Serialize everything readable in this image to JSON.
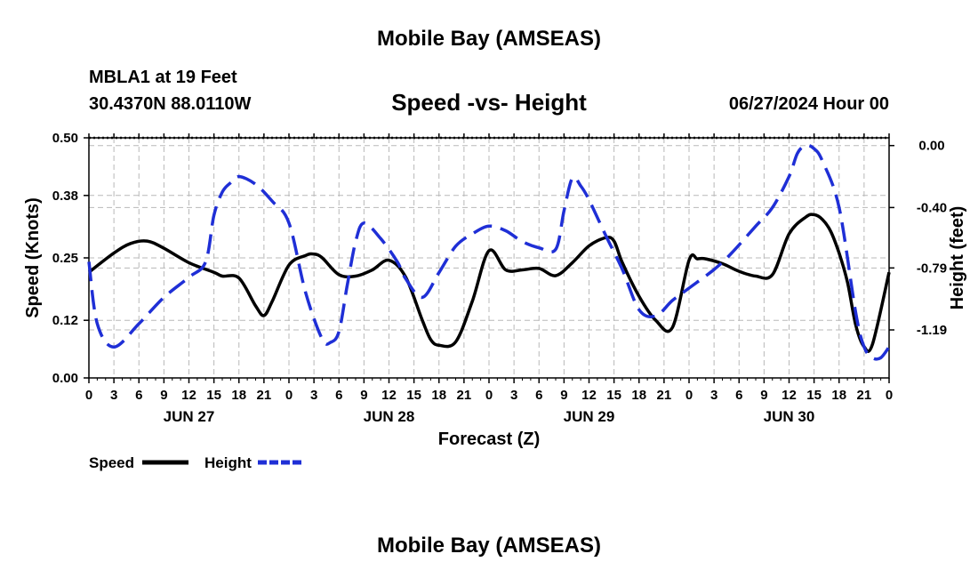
{
  "header": {
    "main_title": "Mobile Bay (AMSEAS)",
    "station_name": "MBLA1 at 19 Feet",
    "station_coords": "30.4370N  88.0110W",
    "date": "06/27/2024 Hour 00",
    "footer_title": "Mobile Bay (AMSEAS)"
  },
  "chart_data": {
    "type": "line",
    "title": "Speed -vs- Height",
    "xlabel": "Forecast (Z)",
    "ylabel": "Speed (Knots)",
    "y2label": "Height (feet)",
    "x_range_hours": [
      0,
      96
    ],
    "ylim": [
      0,
      0.5
    ],
    "y2lim": [
      -1.5,
      0.05
    ],
    "y_ticks": [
      "0.00",
      "0.12",
      "0.25",
      "0.38",
      "0.50"
    ],
    "y2_ticks": [
      "0.00",
      "-0.40",
      "-0.79",
      "-1.19"
    ],
    "x_tick_labels": [
      "0",
      "3",
      "6",
      "9",
      "12",
      "15",
      "18",
      "21",
      "0",
      "3",
      "6",
      "9",
      "12",
      "15",
      "18",
      "21",
      "0",
      "3",
      "6",
      "9",
      "12",
      "15",
      "18",
      "21",
      "0",
      "3",
      "6",
      "9",
      "12",
      "15",
      "18",
      "21",
      "0"
    ],
    "date_labels": [
      "JUN 27",
      "JUN 28",
      "JUN 29",
      "JUN 30"
    ],
    "grid": true,
    "series": [
      {
        "name": "Speed",
        "axis": "left",
        "color": "#000000",
        "style": "solid",
        "x": [
          0,
          3,
          5,
          7,
          9,
          12,
          15,
          16,
          18,
          20,
          21,
          22,
          24,
          26,
          27,
          28,
          30,
          32,
          34,
          36,
          38,
          40,
          41,
          42,
          44,
          46,
          48,
          50,
          52,
          54,
          56,
          58,
          60,
          62,
          63,
          64,
          66,
          68,
          70,
          72,
          73,
          74,
          76,
          78,
          80,
          82,
          84,
          86,
          87,
          88,
          89,
          90,
          91,
          92,
          93,
          94,
          96
        ],
        "values": [
          0.22,
          0.26,
          0.28,
          0.285,
          0.27,
          0.24,
          0.22,
          0.212,
          0.208,
          0.15,
          0.13,
          0.16,
          0.235,
          0.255,
          0.258,
          0.25,
          0.215,
          0.212,
          0.225,
          0.245,
          0.21,
          0.12,
          0.08,
          0.068,
          0.075,
          0.16,
          0.265,
          0.225,
          0.225,
          0.228,
          0.213,
          0.24,
          0.275,
          0.292,
          0.285,
          0.24,
          0.17,
          0.12,
          0.105,
          0.245,
          0.248,
          0.248,
          0.238,
          0.222,
          0.212,
          0.215,
          0.3,
          0.335,
          0.34,
          0.33,
          0.305,
          0.26,
          0.2,
          0.11,
          0.065,
          0.07,
          0.22
        ]
      },
      {
        "name": "Height",
        "axis": "right",
        "color": "#1f2fd6",
        "style": "dashed",
        "x": [
          0,
          1,
          3,
          6,
          9,
          12,
          14,
          15,
          16,
          17,
          18,
          20,
          22,
          24,
          26,
          28,
          29,
          30,
          31,
          32,
          33,
          35,
          37,
          38,
          40,
          42,
          44,
          46,
          48,
          50,
          52,
          54,
          56,
          57,
          58,
          59,
          60,
          62,
          64,
          66,
          68,
          70,
          72,
          75,
          77,
          80,
          82,
          84,
          85,
          86,
          87,
          88,
          90,
          92,
          93,
          94,
          95,
          96
        ],
        "values": [
          -0.75,
          -1.15,
          -1.3,
          -1.15,
          -0.98,
          -0.85,
          -0.75,
          -0.45,
          -0.3,
          -0.24,
          -0.2,
          -0.25,
          -0.36,
          -0.5,
          -0.95,
          -1.25,
          -1.27,
          -1.2,
          -0.9,
          -0.62,
          -0.5,
          -0.6,
          -0.75,
          -0.86,
          -0.98,
          -0.82,
          -0.65,
          -0.57,
          -0.52,
          -0.55,
          -0.62,
          -0.66,
          -0.67,
          -0.42,
          -0.21,
          -0.26,
          -0.35,
          -0.58,
          -0.8,
          -1.06,
          -1.1,
          -1.0,
          -0.92,
          -0.8,
          -0.7,
          -0.52,
          -0.4,
          -0.2,
          -0.05,
          0.0,
          -0.02,
          -0.1,
          -0.4,
          -1.08,
          -1.3,
          -1.37,
          -1.37,
          -1.3
        ]
      }
    ]
  }
}
